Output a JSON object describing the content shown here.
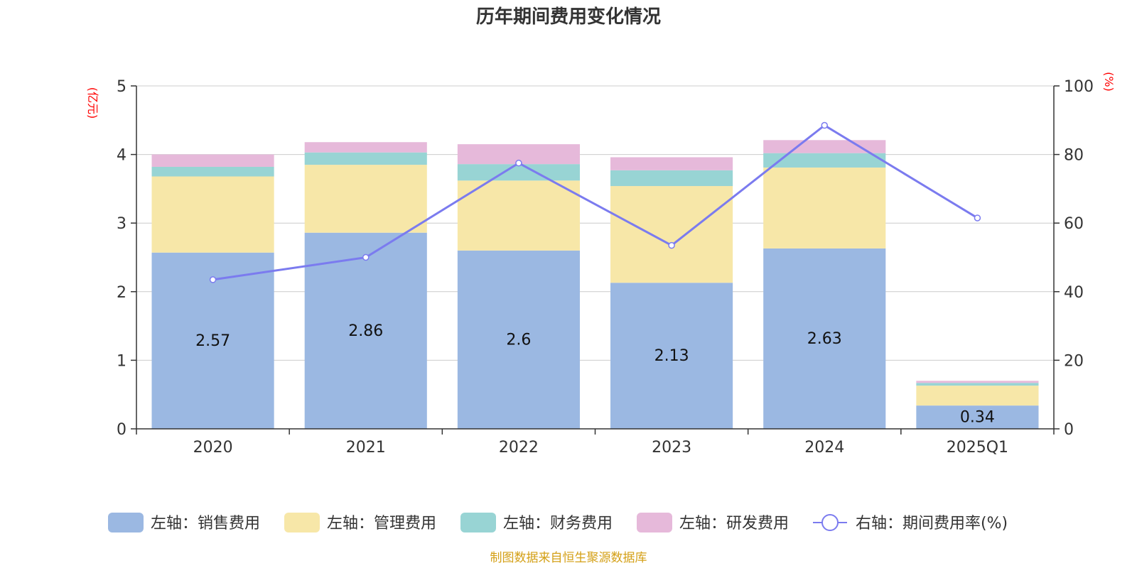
{
  "chart_data": {
    "type": "bar",
    "title": "历年期间费用变化情况",
    "categories": [
      "2020",
      "2021",
      "2022",
      "2023",
      "2024",
      "2025Q1"
    ],
    "left_axis": {
      "unit": "(亿元)",
      "ylim": [
        0,
        5
      ],
      "ticks": [
        0,
        1,
        2,
        3,
        4,
        5
      ]
    },
    "right_axis": {
      "unit": "(%)",
      "ylim": [
        0,
        100
      ],
      "ticks": [
        0,
        20,
        40,
        60,
        80,
        100
      ]
    },
    "grid": true,
    "series": [
      {
        "name": "左轴：销售费用",
        "kind": "bar",
        "axis": "left",
        "color": "#9bb8e2",
        "values": [
          2.57,
          2.86,
          2.6,
          2.13,
          2.63,
          0.34
        ],
        "labels": [
          "2.57",
          "2.86",
          "2.6",
          "2.13",
          "2.63",
          "0.34"
        ]
      },
      {
        "name": "左轴：管理费用",
        "kind": "bar",
        "axis": "left",
        "color": "#f7e7a8",
        "values": [
          1.11,
          0.99,
          1.02,
          1.41,
          1.18,
          0.29
        ]
      },
      {
        "name": "左轴：财务费用",
        "kind": "bar",
        "axis": "left",
        "color": "#98d4d4",
        "values": [
          0.14,
          0.18,
          0.24,
          0.23,
          0.21,
          0.04
        ]
      },
      {
        "name": "左轴：研发费用",
        "kind": "bar",
        "axis": "left",
        "color": "#e6b9da",
        "values": [
          0.18,
          0.15,
          0.29,
          0.19,
          0.19,
          0.03
        ]
      },
      {
        "name": "右轴：期间费用率(%)",
        "kind": "line",
        "axis": "right",
        "color": "#7b7bef",
        "values": [
          43.5,
          50,
          77.5,
          53.5,
          88.5,
          61.5
        ]
      }
    ],
    "legend_position": "bottom"
  },
  "footer": {
    "source": "制图数据来自恒生聚源数据库"
  }
}
